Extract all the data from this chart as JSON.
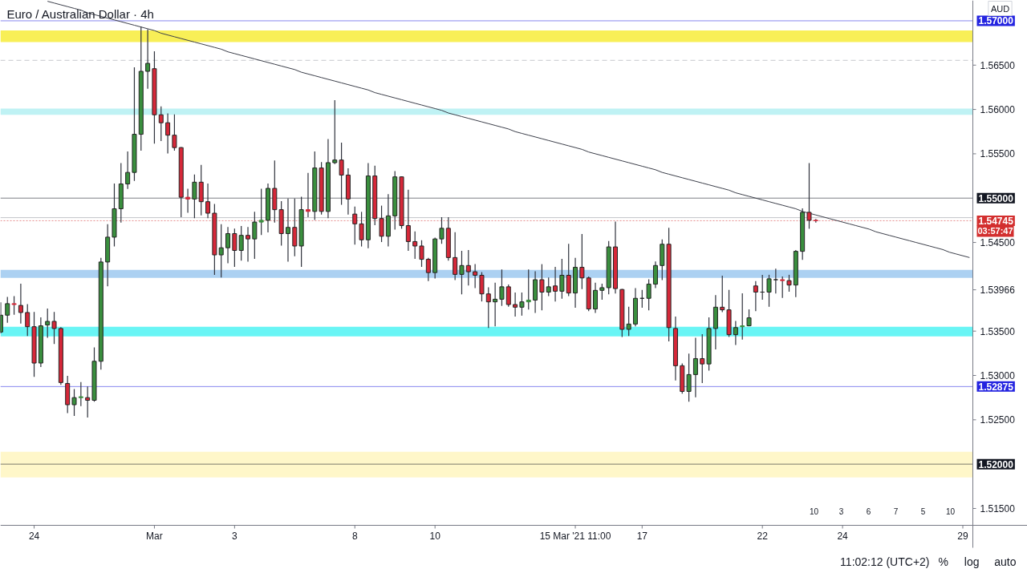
{
  "chart_data": {
    "type": "candlestick",
    "title": "Euro / Australian Dollar · 4h",
    "categories": [
      null,
      null,
      null,
      null,
      null,
      "24",
      null,
      null,
      null,
      null,
      null,
      null,
      null,
      null,
      null,
      null,
      null,
      null,
      null,
      null,
      null,
      null,
      null,
      "Mar",
      null,
      null,
      null,
      null,
      null,
      null,
      null,
      null,
      null,
      null,
      null,
      "3",
      null,
      null,
      null,
      null,
      null,
      null,
      null,
      null,
      null,
      null,
      null,
      null,
      null,
      null,
      null,
      null,
      null,
      "8",
      null,
      null,
      null,
      null,
      null,
      null,
      null,
      null,
      null,
      null,
      null,
      "10",
      null,
      null,
      null,
      null,
      null,
      null,
      null,
      null,
      null,
      null,
      null,
      null,
      null,
      null,
      null,
      null,
      null,
      null,
      null,
      null,
      "15 Mar '21 11:00",
      null,
      null,
      null,
      null,
      null,
      null,
      null,
      null,
      null,
      "17",
      null,
      null,
      null,
      null,
      null,
      null,
      null,
      null,
      null,
      null,
      null,
      null,
      null,
      null,
      null,
      null,
      null,
      "22",
      null,
      null,
      null,
      null,
      null,
      null,
      null,
      null,
      null,
      null,
      null,
      "24",
      null,
      null,
      null,
      null,
      null,
      null,
      null,
      null,
      null,
      null,
      null,
      null,
      null,
      null,
      null,
      null,
      null,
      "29",
      null
    ],
    "ohlc": [
      [
        1.5349,
        1.5382,
        1.5348,
        1.5368
      ],
      [
        1.5368,
        1.5388,
        1.536,
        1.5381
      ],
      [
        1.5381,
        1.5389,
        1.5369,
        1.538
      ],
      [
        1.5379,
        1.5403,
        1.5359,
        1.5371
      ],
      [
        1.5371,
        1.538,
        1.5345,
        1.5355
      ],
      [
        1.5355,
        1.5371,
        1.5299,
        1.5314
      ],
      [
        1.5314,
        1.5365,
        1.531,
        1.5356
      ],
      [
        1.5357,
        1.5375,
        1.5343,
        1.5361
      ],
      [
        1.5361,
        1.5371,
        1.5336,
        1.5353
      ],
      [
        1.5353,
        1.5354,
        1.529,
        1.5292
      ],
      [
        1.5291,
        1.5299,
        1.5258,
        1.5267
      ],
      [
        1.5267,
        1.5284,
        1.5255,
        1.5275
      ],
      [
        1.5275,
        1.5292,
        1.5266,
        1.5276
      ],
      [
        1.5275,
        1.5287,
        1.5253,
        1.5272
      ],
      [
        1.5272,
        1.5331,
        1.5271,
        1.5316
      ],
      [
        1.5316,
        1.5432,
        1.5307,
        1.5428
      ],
      [
        1.5428,
        1.547,
        1.5401,
        1.5456
      ],
      [
        1.5456,
        1.5516,
        1.5446,
        1.5488
      ],
      [
        1.5488,
        1.5539,
        1.5473,
        1.5516
      ],
      [
        1.5516,
        1.5552,
        1.5511,
        1.5529
      ],
      [
        1.5529,
        1.5647,
        1.552,
        1.5572
      ],
      [
        1.5572,
        1.5693,
        1.5554,
        1.5643
      ],
      [
        1.5643,
        1.569,
        1.5624,
        1.5652
      ],
      [
        1.5646,
        1.5665,
        1.5562,
        1.5594
      ],
      [
        1.5594,
        1.5603,
        1.5565,
        1.5585
      ],
      [
        1.5585,
        1.5595,
        1.5551,
        1.5571
      ],
      [
        1.5571,
        1.5594,
        1.5554,
        1.5557
      ],
      [
        1.5557,
        1.5557,
        1.5479,
        1.5501
      ],
      [
        1.5501,
        1.551,
        1.5484,
        1.5499
      ],
      [
        1.5499,
        1.5526,
        1.5478,
        1.5518
      ],
      [
        1.5518,
        1.5537,
        1.5481,
        1.5496
      ],
      [
        1.5496,
        1.5516,
        1.5478,
        1.5483
      ],
      [
        1.5483,
        1.5493,
        1.5414,
        1.5436
      ],
      [
        1.5436,
        1.547,
        1.5411,
        1.5444
      ],
      [
        1.5444,
        1.5467,
        1.5427,
        1.546
      ],
      [
        1.546,
        1.5465,
        1.5423,
        1.5441
      ],
      [
        1.5441,
        1.5468,
        1.543,
        1.5458
      ],
      [
        1.5458,
        1.5467,
        1.5429,
        1.5454
      ],
      [
        1.5454,
        1.5484,
        1.5432,
        1.5473
      ],
      [
        1.5473,
        1.551,
        1.5459,
        1.5475
      ],
      [
        1.5475,
        1.5516,
        1.5462,
        1.5511
      ],
      [
        1.5511,
        1.5542,
        1.5473,
        1.5487
      ],
      [
        1.5487,
        1.5496,
        1.5447,
        1.546
      ],
      [
        1.546,
        1.5499,
        1.5429,
        1.5467
      ],
      [
        1.5467,
        1.5499,
        1.5435,
        1.5446
      ],
      [
        1.5446,
        1.5501,
        1.5423,
        1.5487
      ],
      [
        1.5487,
        1.5528,
        1.5479,
        1.5485
      ],
      [
        1.5485,
        1.5552,
        1.5476,
        1.5534
      ],
      [
        1.5534,
        1.554,
        1.5482,
        1.5485
      ],
      [
        1.5485,
        1.5566,
        1.5478,
        1.554
      ],
      [
        1.554,
        1.561,
        1.5539,
        1.5543
      ],
      [
        1.5543,
        1.5562,
        1.5493,
        1.5526
      ],
      [
        1.5526,
        1.5533,
        1.5482,
        1.5499
      ],
      [
        1.5482,
        1.549,
        1.5448,
        1.5471
      ],
      [
        1.5471,
        1.5484,
        1.5446,
        1.5453
      ],
      [
        1.5453,
        1.5539,
        1.5444,
        1.5525
      ],
      [
        1.5525,
        1.5536,
        1.547,
        1.5477
      ],
      [
        1.5477,
        1.5491,
        1.5451,
        1.5457
      ],
      [
        1.5457,
        1.5504,
        1.5446,
        1.548
      ],
      [
        1.548,
        1.553,
        1.5465,
        1.5524
      ],
      [
        1.5524,
        1.5524,
        1.5466,
        1.5469
      ],
      [
        1.5469,
        1.5509,
        1.5441,
        1.5451
      ],
      [
        1.5451,
        1.5462,
        1.5432,
        1.5446
      ],
      [
        1.5446,
        1.5452,
        1.5423,
        1.5431
      ],
      [
        1.5431,
        1.5432,
        1.5407,
        1.5416
      ],
      [
        1.5416,
        1.5455,
        1.541,
        1.5454
      ],
      [
        1.5454,
        1.5478,
        1.5449,
        1.5466
      ],
      [
        1.5466,
        1.5478,
        1.543,
        1.5433
      ],
      [
        1.5433,
        1.5461,
        1.5408,
        1.5414
      ],
      [
        1.5414,
        1.544,
        1.5392,
        1.5424
      ],
      [
        1.5424,
        1.5441,
        1.5402,
        1.5417
      ],
      [
        1.5417,
        1.5425,
        1.5399,
        1.5413
      ],
      [
        1.5413,
        1.5416,
        1.5384,
        1.5392
      ],
      [
        1.5392,
        1.5399,
        1.5354,
        1.5383
      ],
      [
        1.5383,
        1.5404,
        1.5356,
        1.5386
      ],
      [
        1.5386,
        1.5419,
        1.5379,
        1.54
      ],
      [
        1.54,
        1.5402,
        1.5378,
        1.538
      ],
      [
        1.538,
        1.5393,
        1.5367,
        1.5377
      ],
      [
        1.5377,
        1.5393,
        1.5368,
        1.5383
      ],
      [
        1.5383,
        1.5419,
        1.5375,
        1.5385
      ],
      [
        1.5385,
        1.5417,
        1.5371,
        1.5408
      ],
      [
        1.5408,
        1.5425,
        1.5374,
        1.5394
      ],
      [
        1.5394,
        1.541,
        1.539,
        1.54
      ],
      [
        1.5401,
        1.5422,
        1.5384,
        1.5395
      ],
      [
        1.5395,
        1.5431,
        1.5387,
        1.5413
      ],
      [
        1.5413,
        1.5448,
        1.539,
        1.5393
      ],
      [
        1.5393,
        1.5432,
        1.5377,
        1.5422
      ],
      [
        1.5422,
        1.5459,
        1.5398,
        1.541
      ],
      [
        1.541,
        1.5411,
        1.5373,
        1.5375
      ],
      [
        1.5375,
        1.5404,
        1.5371,
        1.5396
      ],
      [
        1.5396,
        1.5403,
        1.5386,
        1.5399
      ],
      [
        1.5399,
        1.5451,
        1.5392,
        1.5445
      ],
      [
        1.5445,
        1.5473,
        1.5393,
        1.5398
      ],
      [
        1.5397,
        1.5397,
        1.5344,
        1.5352
      ],
      [
        1.5352,
        1.5377,
        1.5345,
        1.5358
      ],
      [
        1.5358,
        1.5398,
        1.5356,
        1.5387
      ],
      [
        1.5387,
        1.5396,
        1.5377,
        1.5387
      ],
      [
        1.5387,
        1.5408,
        1.5374,
        1.5403
      ],
      [
        1.5403,
        1.5428,
        1.5399,
        1.5424
      ],
      [
        1.5424,
        1.5453,
        1.5408,
        1.5448
      ],
      [
        1.5448,
        1.5466,
        1.5339,
        1.5354
      ],
      [
        1.5353,
        1.5366,
        1.5295,
        1.5311
      ],
      [
        1.5311,
        1.5313,
        1.528,
        1.5282
      ],
      [
        1.5282,
        1.5324,
        1.5271,
        1.5301
      ],
      [
        1.5301,
        1.5342,
        1.5276,
        1.5319
      ],
      [
        1.5319,
        1.5346,
        1.5292,
        1.5313
      ],
      [
        1.5313,
        1.5365,
        1.5306,
        1.5353
      ],
      [
        1.5353,
        1.539,
        1.533,
        1.5377
      ],
      [
        1.5377,
        1.5412,
        1.5372,
        1.5374
      ],
      [
        1.5374,
        1.5396,
        1.5344,
        1.5346
      ],
      [
        1.5346,
        1.5361,
        1.5335,
        1.5354
      ],
      [
        1.5355,
        1.5392,
        1.5341,
        1.5356
      ],
      [
        1.5356,
        1.5374,
        1.5356,
        1.5365
      ],
      [
        1.5401,
        1.5406,
        1.5373,
        1.5394
      ],
      [
        1.5394,
        1.5413,
        1.5386,
        1.5394
      ],
      [
        1.5394,
        1.5413,
        1.5378,
        1.5409
      ],
      [
        1.5408,
        1.542,
        1.5393,
        1.5408
      ],
      [
        1.5408,
        1.5411,
        1.5388,
        1.5407
      ],
      [
        1.5407,
        1.5413,
        1.5395,
        1.5402
      ],
      [
        1.5402,
        1.5441,
        1.5389,
        1.544
      ],
      [
        1.544,
        1.5488,
        1.5431,
        1.5484
      ],
      [
        1.5484,
        1.5539,
        1.5466,
        1.5475
      ],
      [
        1.5475,
        1.5476,
        1.5473,
        1.54745
      ],
      null,
      null,
      null,
      null,
      null,
      null,
      null,
      null,
      null,
      null,
      null,
      null,
      null,
      null,
      null,
      null,
      null,
      null,
      null,
      null,
      null,
      null,
      null
    ],
    "colors": [
      "#3a8f3e",
      "#3a8f3e",
      "#d62839",
      "#d62839",
      "#d62839",
      "#d62839",
      "#3a8f3e",
      "#3a8f3e",
      "#d62839",
      "#d62839",
      "#d62839",
      "#3a8f3e",
      "#3a8f3e",
      "#d62839",
      "#3a8f3e",
      "#3a8f3e",
      "#3a8f3e",
      "#3a8f3e",
      "#3a8f3e",
      "#3a8f3e",
      "#3a8f3e",
      "#3a8f3e",
      "#3a8f3e",
      "#d62839",
      "#d62839",
      "#d62839",
      "#d62839",
      "#d62839",
      "#d62839",
      "#3a8f3e",
      "#d62839",
      "#d62839",
      "#d62839",
      "#3a8f3e",
      "#3a8f3e",
      "#d62839",
      "#3a8f3e",
      "#d62839",
      "#3a8f3e",
      "#3a8f3e",
      "#3a8f3e",
      "#d62839",
      "#d62839",
      "#3a8f3e",
      "#d62839",
      "#3a8f3e",
      "#d62839",
      "#3a8f3e",
      "#d62839",
      "#3a8f3e",
      "#3a8f3e",
      "#d62839",
      "#d62839",
      "#d62839",
      "#d62839",
      "#3a8f3e",
      "#d62839",
      "#d62839",
      "#3a8f3e",
      "#3a8f3e",
      "#d62839",
      "#d62839",
      "#d62839",
      "#d62839",
      "#d62839",
      "#3a8f3e",
      "#3a8f3e",
      "#d62839",
      "#d62839",
      "#3a8f3e",
      "#d62839",
      "#d62839",
      "#d62839",
      "#d62839",
      "#3a8f3e",
      "#3a8f3e",
      "#d62839",
      "#d62839",
      "#3a8f3e",
      "#3a8f3e",
      "#3a8f3e",
      "#d62839",
      "#3a8f3e",
      "#d62839",
      "#3a8f3e",
      "#d62839",
      "#3a8f3e",
      "#d62839",
      "#d62839",
      "#3a8f3e",
      "#3a8f3e",
      "#3a8f3e",
      "#d62839",
      "#d62839",
      "#3a8f3e",
      "#3a8f3e",
      "#232323",
      "#3a8f3e",
      "#3a8f3e",
      "#3a8f3e",
      "#d62839",
      "#d62839",
      "#d62839",
      "#3a8f3e",
      "#3a8f3e",
      "#d62839",
      "#3a8f3e",
      "#3a8f3e",
      "#d62839",
      "#d62839",
      "#3a8f3e",
      "#3a8f3e",
      "#3a8f3e",
      "#d62839",
      "#232323",
      "#3a8f3e",
      "#232323",
      "#d62839",
      "#d62839",
      "#3a8f3e",
      "#3a8f3e",
      "#d62839",
      "#d62839",
      null,
      null,
      null,
      null,
      null,
      null,
      null,
      null,
      null,
      null,
      null,
      null,
      null,
      null,
      null,
      null,
      null,
      null,
      null,
      null,
      null,
      null,
      null
    ],
    "series": [
      {
        "type": "line",
        "color": "#3c3f4a",
        "values": [
          null,
          null,
          null,
          null,
          null,
          null,
          null,
          1.5722,
          1.572,
          1.5718,
          1.5716,
          1.5714,
          1.5712,
          1.5709,
          1.5707,
          1.5705,
          1.5703,
          1.5701,
          1.5699,
          1.5697,
          1.5695,
          1.5693,
          1.5691,
          1.5689,
          1.5686,
          1.5684,
          1.5682,
          1.568,
          1.5678,
          1.5676,
          1.5674,
          1.5672,
          1.567,
          1.5668,
          1.5665,
          1.5663,
          1.5661,
          1.5659,
          1.5657,
          1.5655,
          1.5653,
          1.5651,
          1.5649,
          1.5647,
          1.5645,
          1.5642,
          1.564,
          1.5638,
          1.5636,
          1.5634,
          1.5632,
          1.563,
          1.5628,
          1.5626,
          1.5624,
          1.5622,
          1.5619,
          1.5617,
          1.5615,
          1.5613,
          1.5611,
          1.5609,
          1.5607,
          1.5605,
          1.5603,
          1.5601,
          1.5599,
          1.5596,
          1.5594,
          1.5592,
          1.559,
          1.5588,
          1.5586,
          1.5584,
          1.5582,
          1.558,
          1.5578,
          1.5575,
          1.5573,
          1.5571,
          1.5569,
          1.5567,
          1.5565,
          1.5563,
          1.5561,
          1.5559,
          1.5557,
          1.5555,
          1.5552,
          1.555,
          1.5548,
          1.5546,
          1.5544,
          1.5542,
          1.554,
          1.5538,
          1.5536,
          1.5534,
          1.5532,
          1.5529,
          1.5527,
          1.5525,
          1.5523,
          1.5521,
          1.5519,
          1.5517,
          1.5515,
          1.5513,
          1.5511,
          1.5509,
          1.5506,
          1.5504,
          1.5502,
          1.55,
          1.5498,
          1.5496,
          1.5494,
          1.5492,
          1.549,
          1.5488,
          1.5485,
          1.5483,
          1.5481,
          1.5479,
          1.5477,
          1.5475,
          1.5473,
          1.5471,
          1.5469,
          1.5467,
          1.5465,
          1.5462,
          1.546,
          1.5458,
          1.5456,
          1.5454,
          1.5452,
          1.545,
          1.5448,
          1.5446,
          1.5444,
          1.5442,
          1.5439,
          1.5437,
          1.5435,
          1.5433
        ]
      }
    ],
    "ylim": [
      1.5131,
      1.5723
    ],
    "yticks": [
      {
        "value": 1.515,
        "label": "1.51500"
      },
      {
        "value": 1.525,
        "label": "1.52500"
      },
      {
        "value": 1.53,
        "label": "1.53000"
      },
      {
        "value": 1.535,
        "label": "1.53500"
      },
      {
        "value": 1.53966,
        "label": "1.53966"
      },
      {
        "value": 1.545,
        "label": "1.54500"
      },
      {
        "value": 1.555,
        "label": "1.55500"
      },
      {
        "value": 1.56,
        "label": "1.56000"
      },
      {
        "value": 1.565,
        "label": "1.56500"
      }
    ],
    "bands": [
      {
        "axis": "y",
        "from": 1.5676,
        "to": 1.5689,
        "color": "#f7ec3a"
      },
      {
        "axis": "y",
        "from": 1.5594,
        "to": 1.5601,
        "color": "#b4f0f2"
      },
      {
        "axis": "y",
        "from": 1.541,
        "to": 1.5419,
        "color": "#9ec9f0"
      },
      {
        "axis": "y",
        "from": 1.5344,
        "to": 1.5355,
        "color": "#4ff3f3"
      },
      {
        "axis": "y",
        "from": 1.5185,
        "to": 1.5214,
        "color": "#fff6c0"
      }
    ],
    "ref_lines": [
      {
        "axis": "y",
        "value": 1.57,
        "label": "1.57000",
        "color": "#2424e0"
      },
      {
        "axis": "y",
        "value": 1.56554,
        "color": "#9598a1",
        "line_style": "dashed"
      },
      {
        "axis": "y",
        "value": 1.55,
        "label": "1.55000",
        "color": "#131722"
      },
      {
        "axis": "y",
        "value": 1.5478,
        "color": "#9598a1"
      },
      {
        "axis": "y",
        "value": 1.54745,
        "label": "1.54745",
        "color": "#d32f2f",
        "line_style": "dotted"
      },
      {
        "axis": "y",
        "value": 1.52875,
        "label": "1.52875",
        "color": "#2424e0"
      },
      {
        "axis": "y",
        "value": 1.52,
        "label": "1.52000",
        "color": "#131722"
      }
    ],
    "annotations": [
      "AUD",
      "03:57:47",
      "11:02:12 (UTC+2)",
      "%",
      "log",
      "auto",
      "10",
      "3",
      "6",
      "7",
      "5",
      "10"
    ],
    "grid": false
  }
}
